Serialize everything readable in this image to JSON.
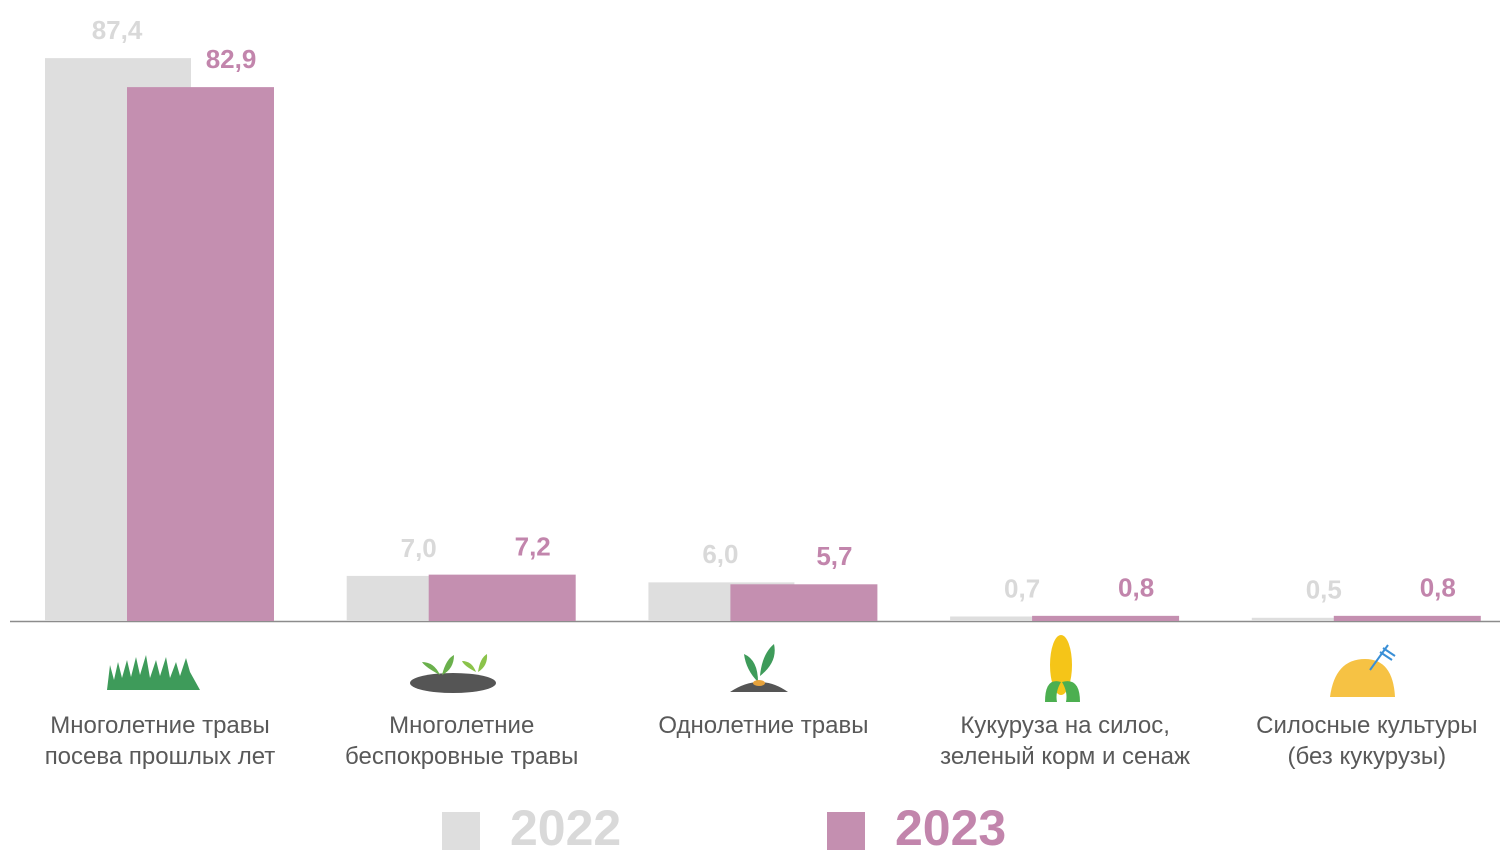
{
  "chart_data": {
    "type": "bar",
    "categories": [
      [
        "Многолетние травы",
        "посева прошлых лет"
      ],
      [
        "Многолетние",
        "беспокровные травы"
      ],
      [
        "Однолетние травы"
      ],
      [
        "Кукуруза на силос,",
        "зеленый корм и сенаж"
      ],
      [
        "Силосные культуры",
        "(без кукурузы)"
      ]
    ],
    "series": [
      {
        "name": "2022",
        "color": "#dedede",
        "label_color": "#d9d9d9",
        "values": [
          87.4,
          7.0,
          6.0,
          0.7,
          0.5
        ],
        "value_labels": [
          "87,4",
          "7,0",
          "6,0",
          "0,7",
          "0,5"
        ]
      },
      {
        "name": "2023",
        "color": "#c48fb0",
        "label_color": "#c285ac",
        "values": [
          82.9,
          7.2,
          5.7,
          0.8,
          0.8
        ],
        "value_labels": [
          "82,9",
          "7,2",
          "5,7",
          "0,8",
          "0,8"
        ]
      }
    ],
    "ylim": [
      0,
      90
    ]
  }
}
